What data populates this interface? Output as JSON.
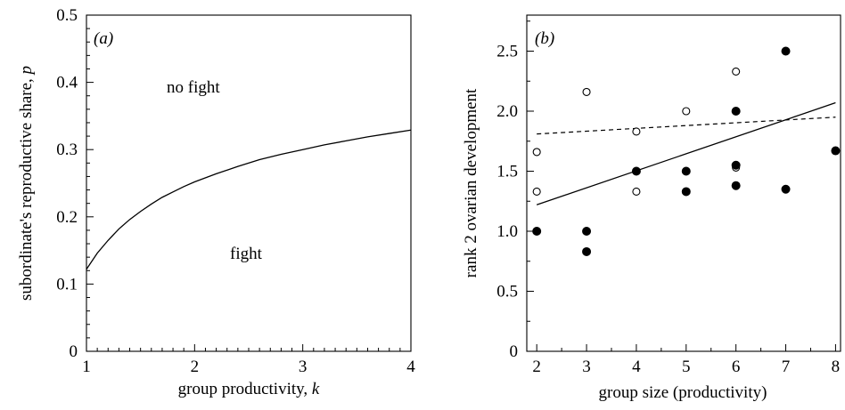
{
  "chart_data": [
    {
      "type": "line",
      "panel_label": "(a)",
      "xlabel": "group productivity, ",
      "xlabel_var": "k",
      "ylabel": "subordinate's reproductive share, ",
      "ylabel_var": "p",
      "xlim": [
        1,
        4
      ],
      "ylim": [
        0,
        0.5
      ],
      "xticks": [
        1,
        2,
        3,
        4
      ],
      "xtick_labels": [
        "1",
        "2",
        "3",
        "4"
      ],
      "yticks": [
        0,
        0.1,
        0.2,
        0.3,
        0.4,
        0.5
      ],
      "ytick_labels": [
        "0",
        "0.1",
        "0.2",
        "0.3",
        "0.4",
        "0.5"
      ],
      "annotations": {
        "upper": "no fight",
        "lower": "fight"
      },
      "grid": false,
      "series": [
        {
          "x": [
            1.0,
            1.1,
            1.2,
            1.3,
            1.4,
            1.5,
            1.6,
            1.7,
            1.8,
            1.9,
            2.0,
            2.2,
            2.4,
            2.6,
            2.8,
            3.0,
            3.2,
            3.4,
            3.6,
            3.8,
            4.0
          ],
          "y": [
            0.122,
            0.146,
            0.165,
            0.182,
            0.196,
            0.208,
            0.219,
            0.229,
            0.237,
            0.245,
            0.252,
            0.264,
            0.275,
            0.285,
            0.293,
            0.3,
            0.307,
            0.313,
            0.319,
            0.324,
            0.329
          ]
        }
      ]
    },
    {
      "type": "scatter",
      "panel_label": "(b)",
      "xlabel": "group size (productivity)",
      "ylabel": "rank 2 ovarian development",
      "xlim": [
        1.8,
        8.1
      ],
      "ylim": [
        0,
        2.8
      ],
      "xticks": [
        2,
        3,
        4,
        5,
        6,
        7,
        8
      ],
      "xtick_labels": [
        "2",
        "3",
        "4",
        "5",
        "6",
        "7",
        "8"
      ],
      "yticks": [
        0,
        0.5,
        1.0,
        1.5,
        2.0,
        2.5
      ],
      "ytick_labels": [
        "0",
        "0.5",
        "1.0",
        "1.5",
        "2.0",
        "2.5"
      ],
      "grid": false,
      "series": [
        {
          "marker": "open",
          "points": [
            [
              2,
              1.66
            ],
            [
              2,
              1.33
            ],
            [
              3,
              2.16
            ],
            [
              4,
              1.83
            ],
            [
              4,
              1.33
            ],
            [
              5,
              2.0
            ],
            [
              6,
              2.33
            ],
            [
              6,
              1.53
            ]
          ]
        },
        {
          "marker": "filled",
          "points": [
            [
              2,
              1.0
            ],
            [
              3,
              1.0
            ],
            [
              3,
              0.83
            ],
            [
              4,
              1.5
            ],
            [
              5,
              1.5
            ],
            [
              5,
              1.33
            ],
            [
              6,
              2.0
            ],
            [
              6,
              1.55
            ],
            [
              6,
              1.38
            ],
            [
              7,
              2.5
            ],
            [
              7,
              1.35
            ],
            [
              8,
              1.67
            ]
          ]
        }
      ],
      "fit_lines": [
        {
          "style": "solid",
          "x": [
            2,
            8
          ],
          "y": [
            1.22,
            2.07
          ]
        },
        {
          "style": "dashed",
          "x": [
            2,
            8
          ],
          "y": [
            1.81,
            1.95
          ]
        }
      ]
    }
  ]
}
